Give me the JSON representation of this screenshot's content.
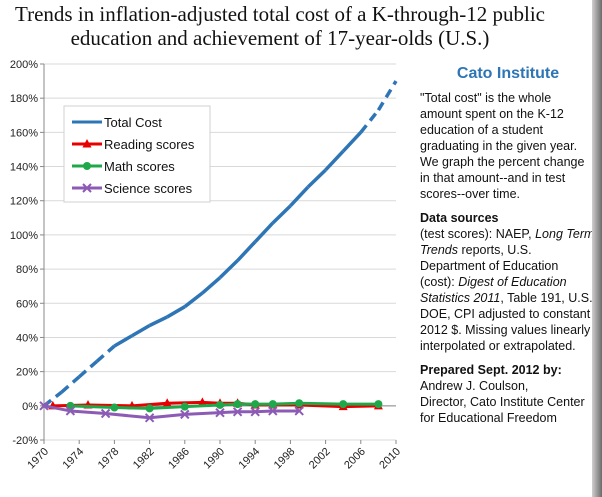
{
  "title_lines": [
    "Trends in inflation-adjusted total cost of a K-through-12 public",
    "education and achievement of 17-year-olds  (U.S.)"
  ],
  "sidebar": {
    "org": "Cato Institute",
    "note": "\"Total cost\" is the whole amount spent on the K-12 education of a student graduating in the given year. We graph the percent change in that amount--and in test scores--over time.",
    "sources_heading": "Data sources",
    "sources_text_1": "(test scores): NAEP, ",
    "sources_em_1": "Long Term Trends",
    "sources_text_2": " reports, U.S. Department of Education (cost): ",
    "sources_em_2": "Digest of Education Statistics 2011",
    "sources_text_3": ", Table 191, U.S. DOE, CPI adjusted to constant 2012 $.  Missing values linearly interpolated or extrapolated.",
    "prepared_heading": "Prepared Sept. 2012 by:",
    "prepared_name": "Andrew J. Coulson,",
    "prepared_role": "Director, Cato Institute Center for Educational Freedom"
  },
  "chart_data": {
    "type": "line",
    "xlim": [
      1970,
      2010
    ],
    "ylim": [
      -20,
      200
    ],
    "yticks": [
      -20,
      0,
      20,
      40,
      60,
      80,
      100,
      120,
      140,
      160,
      180,
      200
    ],
    "ytick_labels": [
      "-20%",
      "0%",
      "20%",
      "40%",
      "60%",
      "80%",
      "100%",
      "120%",
      "140%",
      "160%",
      "180%",
      "200%"
    ],
    "xticks": [
      1970,
      1974,
      1978,
      1982,
      1986,
      1990,
      1994,
      1998,
      2002,
      2006,
      2010
    ],
    "grid": "horizontal",
    "legend_position": "upper-left",
    "series": [
      {
        "name": "Total Cost",
        "color": "#2e75b6",
        "marker": "none",
        "x": [
          1970,
          1972,
          1974,
          1976,
          1978,
          1980,
          1982,
          1984,
          1986,
          1988,
          1990,
          1992,
          1994,
          1996,
          1998,
          2000,
          2002,
          2004,
          2006,
          2008,
          2010
        ],
        "values": [
          0,
          8,
          17,
          26,
          35,
          41,
          47,
          52,
          58,
          66,
          75,
          85,
          96,
          107,
          117,
          128,
          138,
          149,
          160,
          173,
          190
        ],
        "dashed_ranges": [
          [
            1970,
            1978
          ],
          [
            2006,
            2010
          ]
        ]
      },
      {
        "name": "Reading scores",
        "color": "#e60000",
        "marker": "triangle",
        "x": [
          1971,
          1975,
          1980,
          1984,
          1988,
          1990,
          1992,
          1994,
          1996,
          1999,
          2004,
          2008
        ],
        "values": [
          0,
          0.5,
          0,
          1.5,
          2,
          1.5,
          1.5,
          0.5,
          0.5,
          0.5,
          -0.5,
          0
        ]
      },
      {
        "name": "Math scores",
        "color": "#1fa84a",
        "marker": "circle",
        "x": [
          1973,
          1978,
          1982,
          1986,
          1990,
          1992,
          1994,
          1996,
          1999,
          2004,
          2008
        ],
        "values": [
          0,
          -1,
          -1.5,
          -0.5,
          0.5,
          1,
          1,
          1,
          1.5,
          1,
          1
        ]
      },
      {
        "name": "Science scores",
        "color": "#8c5bb5",
        "marker": "x",
        "x": [
          1970,
          1973,
          1977,
          1982,
          1986,
          1990,
          1992,
          1994,
          1996,
          1999
        ],
        "values": [
          0,
          -3,
          -4.5,
          -7,
          -5,
          -4,
          -3.5,
          -3.5,
          -3,
          -3
        ]
      }
    ]
  }
}
